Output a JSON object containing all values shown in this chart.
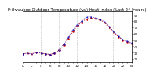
{
  "title": "Milwaukee Outdoor Temperature (vs) Heat Index (Last 24 Hours)",
  "bg_color": "#ffffff",
  "plot_bg_color": "#ffffff",
  "grid_color": "#aaaaaa",
  "line_color_red": "#cc0000",
  "line_color_blue": "#0000bb",
  "ylim": [
    15,
    95
  ],
  "xlim": [
    0,
    24
  ],
  "x_temp": [
    0,
    1,
    2,
    3,
    4,
    5,
    6,
    7,
    8,
    9,
    10,
    11,
    12,
    13,
    14,
    15,
    16,
    17,
    18,
    19,
    20,
    21,
    22,
    23,
    24
  ],
  "y_temp": [
    28,
    29,
    28,
    30,
    29,
    28,
    27,
    29,
    34,
    42,
    52,
    63,
    72,
    78,
    83,
    85,
    84,
    82,
    78,
    70,
    62,
    55,
    50,
    47,
    44
  ],
  "x_heat": [
    0,
    1,
    2,
    3,
    4,
    5,
    6,
    7,
    8,
    9,
    10,
    11,
    12,
    13,
    14,
    15,
    16,
    17,
    18,
    19,
    20,
    21,
    22,
    23,
    24
  ],
  "y_heat": [
    28,
    29,
    28,
    30,
    29,
    28,
    27,
    29,
    34,
    43,
    54,
    66,
    74,
    80,
    86,
    87,
    85,
    83,
    79,
    71,
    63,
    56,
    51,
    48,
    45
  ],
  "title_fontsize": 3.8,
  "tick_fontsize": 3.0,
  "grid_positions": [
    4,
    8,
    12,
    16,
    20
  ],
  "ytick_vals": [
    20,
    30,
    40,
    50,
    60,
    70,
    80,
    90
  ],
  "xtick_vals": [
    0,
    1,
    2,
    3,
    4,
    5,
    6,
    7,
    8,
    9,
    10,
    11,
    12,
    13,
    14,
    15,
    16,
    17,
    18,
    19,
    20,
    21,
    22,
    23,
    24
  ]
}
